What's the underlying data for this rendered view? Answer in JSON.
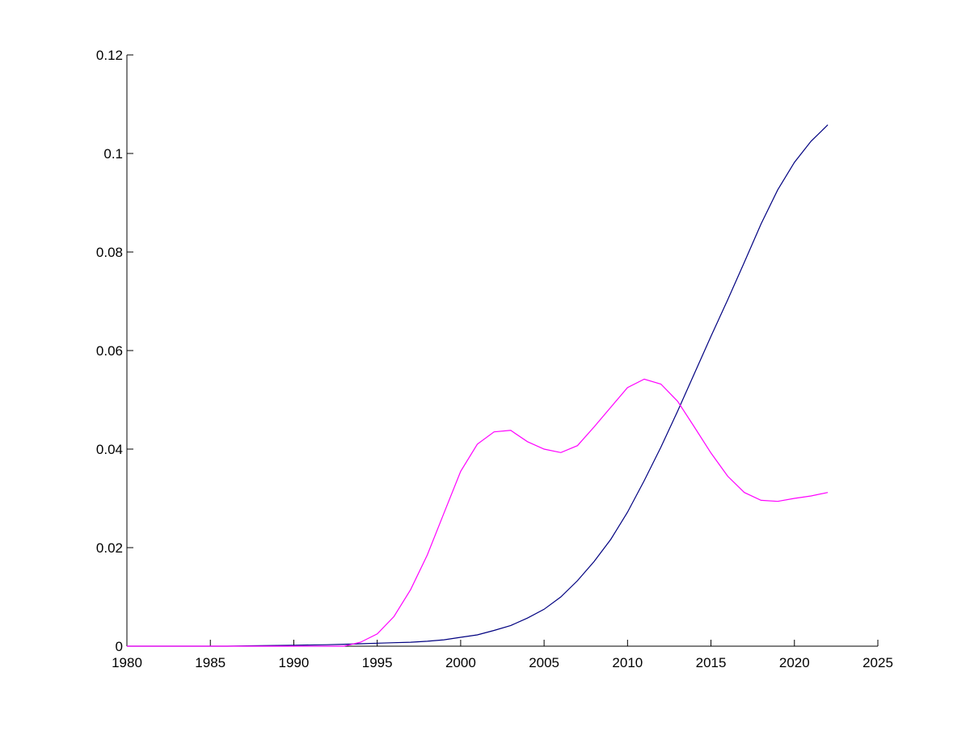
{
  "chart_data": {
    "type": "line",
    "title": "",
    "xlabel": "",
    "ylabel": "",
    "xlim": [
      1980,
      2025
    ],
    "ylim": [
      0,
      0.12
    ],
    "grid": false,
    "legend": "none",
    "x_ticks": [
      1980,
      1985,
      1990,
      1995,
      2000,
      2005,
      2010,
      2015,
      2020,
      2025
    ],
    "x_tick_labels": [
      "1980",
      "1985",
      "1990",
      "1995",
      "2000",
      "2005",
      "2010",
      "2015",
      "2020",
      "2025"
    ],
    "y_ticks": [
      0,
      0.02,
      0.04,
      0.06,
      0.08,
      0.1,
      0.12
    ],
    "y_tick_labels": [
      "0",
      "0.02",
      "0.04",
      "0.06",
      "0.08",
      "0.1",
      "0.12"
    ],
    "series": [
      {
        "color": "#000080",
        "x": [
          1980,
          1982,
          1984,
          1986,
          1988,
          1990,
          1992,
          1993,
          1994,
          1995,
          1996,
          1997,
          1998,
          1999,
          2000,
          2001,
          2002,
          2003,
          2004,
          2005,
          2006,
          2007,
          2008,
          2009,
          2010,
          2011,
          2012,
          2013,
          2014,
          2015,
          2016,
          2017,
          2018,
          2019,
          2020,
          2021,
          2022
        ],
        "values": [
          0,
          0,
          0,
          0,
          0.0001,
          0.0002,
          0.0003,
          0.0004,
          0.0005,
          0.0006,
          0.0007,
          0.0008,
          0.001,
          0.0013,
          0.0018,
          0.0023,
          0.0032,
          0.0042,
          0.0057,
          0.0075,
          0.01,
          0.0133,
          0.0172,
          0.0217,
          0.0272,
          0.0336,
          0.0404,
          0.0477,
          0.0553,
          0.0629,
          0.0703,
          0.0779,
          0.0857,
          0.0926,
          0.0982,
          0.1025,
          0.1058
        ]
      },
      {
        "color": "#ff00ff",
        "x": [
          1980,
          1985,
          1990,
          1993,
          1994,
          1995,
          1996,
          1997,
          1998,
          1999,
          2000,
          2001,
          2002,
          2003,
          2004,
          2005,
          2006,
          2007,
          2008,
          2009,
          2010,
          2011,
          2012,
          2013,
          2014,
          2015,
          2016,
          2017,
          2018,
          2019,
          2020,
          2021,
          2022
        ],
        "values": [
          0,
          0,
          0,
          0,
          0.0008,
          0.0025,
          0.006,
          0.0115,
          0.0185,
          0.027,
          0.0355,
          0.041,
          0.0435,
          0.0438,
          0.0415,
          0.04,
          0.0393,
          0.0407,
          0.0445,
          0.0485,
          0.0525,
          0.0542,
          0.0532,
          0.0497,
          0.0445,
          0.0392,
          0.0345,
          0.0312,
          0.0296,
          0.0294,
          0.03,
          0.0305,
          0.0312
        ]
      }
    ]
  }
}
